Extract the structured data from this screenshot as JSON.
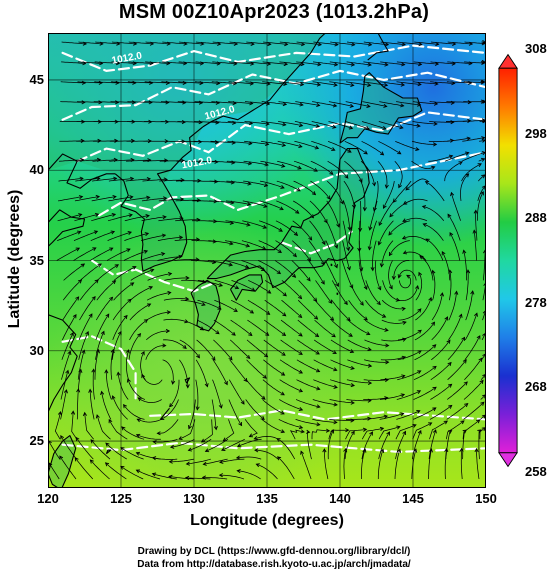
{
  "title": "MSM 00Z10Apr2023 (1013.2hPa)",
  "axes": {
    "xlabel": "Longitude (degrees)",
    "ylabel": "Latitude  (degrees)",
    "xticks": [
      "120",
      "125",
      "130",
      "135",
      "140",
      "145",
      "150"
    ],
    "yticks": [
      "25",
      "30",
      "35",
      "40",
      "45"
    ],
    "x_range": [
      120,
      150
    ],
    "y_range": [
      22.4,
      47.6
    ]
  },
  "colorbar": {
    "labels": [
      "308",
      "298",
      "288",
      "278",
      "268",
      "258"
    ],
    "range": [
      258,
      308
    ]
  },
  "contour_labels": [
    "1012.0",
    "1012.0",
    "1012.0"
  ],
  "footer": {
    "line1": "Drawing by DCL (https://www.gfd-dennou.org/library/dcl/)",
    "line2": "Data from http://database.rish.kyoto-u.ac.jp/arch/jmadata/"
  },
  "colors": {
    "land_outline": "#000000",
    "contour": "#ffffff",
    "vector": "#000000",
    "cold": "#1f6fe0",
    "cool": "#22c8e0",
    "mild": "#22cc44",
    "warm": "#a8e61a"
  },
  "map_features": {
    "gridlines_deg": 5,
    "vector_field": "streamlines",
    "cyclone_center": [
      144.5,
      33.8
    ],
    "anticyclone_center": [
      127.5,
      29.0
    ]
  }
}
